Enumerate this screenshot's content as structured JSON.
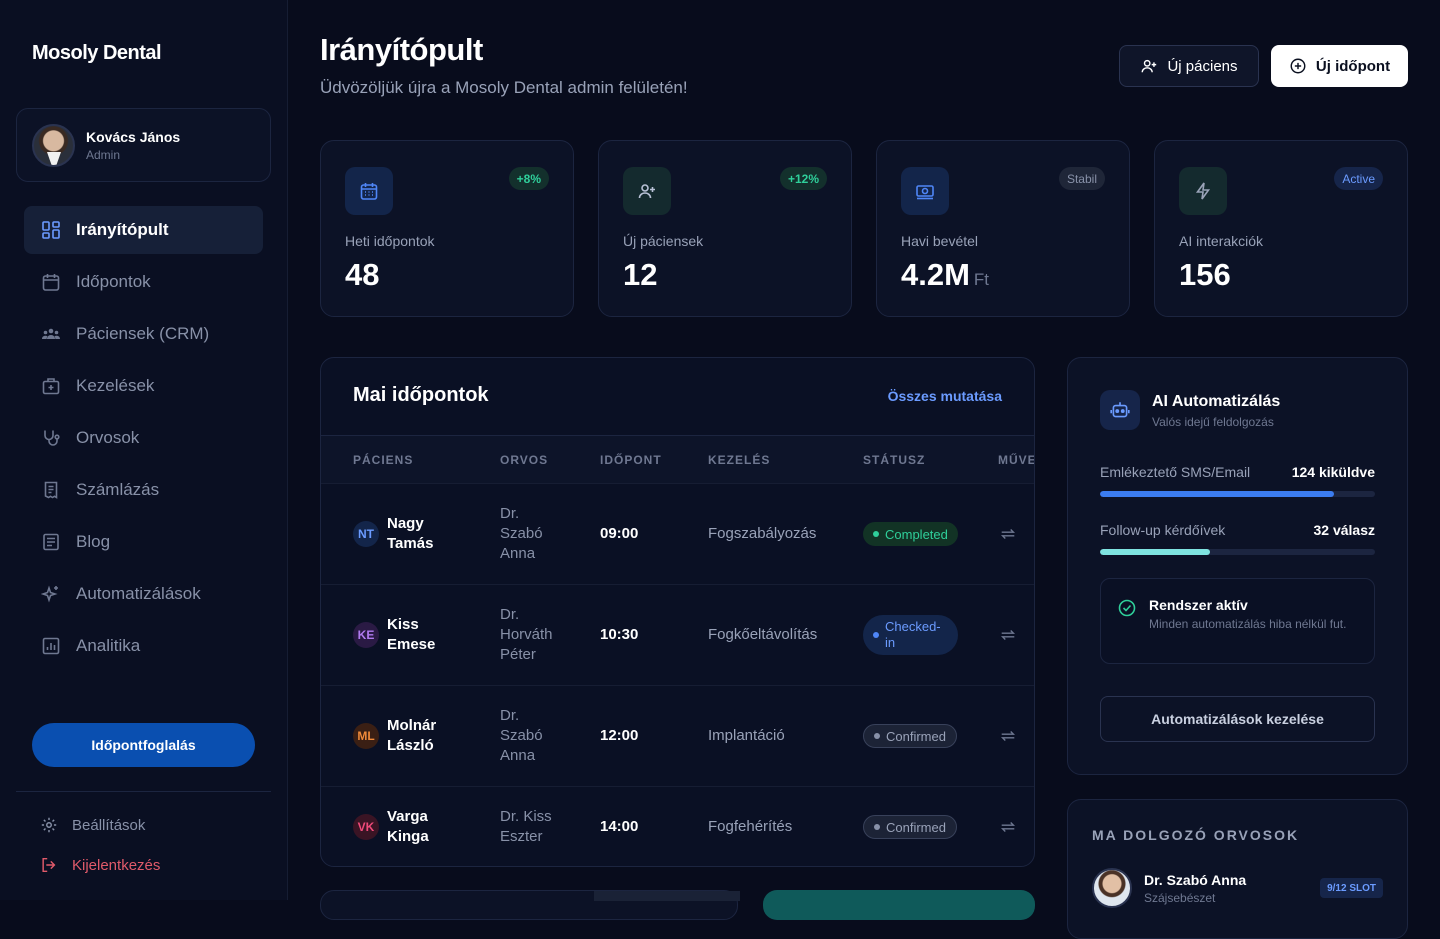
{
  "brand": "Mosoly Dental",
  "user": {
    "name": "Kovács János",
    "role": "Admin"
  },
  "nav": [
    {
      "label": "Irányítópult",
      "icon": "grid-icon",
      "active": true
    },
    {
      "label": "Időpontok",
      "icon": "calendar-icon"
    },
    {
      "label": "Páciensek (CRM)",
      "icon": "users-icon"
    },
    {
      "label": "Kezelések",
      "icon": "medical-bag-icon"
    },
    {
      "label": "Orvosok",
      "icon": "stethoscope-icon"
    },
    {
      "label": "Számlázás",
      "icon": "receipt-icon"
    },
    {
      "label": "Blog",
      "icon": "article-icon"
    },
    {
      "label": "Automatizálások",
      "icon": "sparkles-icon"
    },
    {
      "label": "Analitika",
      "icon": "chart-icon"
    }
  ],
  "booking_button": "Időpontfoglalás",
  "settings": "Beállítások",
  "logout": "Kijelentkezés",
  "header": {
    "title": "Irányítópult",
    "subtitle": "Üdvözöljük újra a Mosoly Dental admin felületén!",
    "new_patient": "Új páciens",
    "new_appointment": "Új időpont"
  },
  "stats": [
    {
      "label": "Heti időpontok",
      "value": "48",
      "unit": "",
      "badge": "+8%",
      "badge_color": "#2fcf9a",
      "icon": "calendar-icon",
      "icon_color": "#4f86f7"
    },
    {
      "label": "Új páciensek",
      "value": "12",
      "unit": "",
      "badge": "+12%",
      "badge_color": "#2fcf9a",
      "icon": "user-plus-icon",
      "icon_color": "#b8c1d6"
    },
    {
      "label": "Havi bevétel",
      "value": "4.2M",
      "unit": "Ft",
      "badge": "Stabil",
      "badge_color": "#8891a8",
      "icon": "money-icon",
      "icon_color": "#4f86f7"
    },
    {
      "label": "AI interakciók",
      "value": "156",
      "unit": "",
      "badge": "Active",
      "badge_color": "#6b9bff",
      "icon": "bolt-icon",
      "icon_color": "#9aa3b8"
    }
  ],
  "appointments": {
    "title": "Mai időpontok",
    "show_all": "Összes mutatása",
    "columns": [
      "PÁCIENS",
      "ORVOS",
      "IDŐPONT",
      "KEZELÉS",
      "STÁTUSZ",
      "MŰVE"
    ],
    "rows": [
      {
        "initials": "NT",
        "patient": "Nagy Tamás",
        "doctor": "Dr. Szabó Anna",
        "time": "09:00",
        "treatment": "Fogszabályozás",
        "status": "Completed",
        "status_kind": "completed"
      },
      {
        "initials": "KE",
        "patient": "Kiss Emese",
        "doctor": "Dr. Horváth Péter",
        "time": "10:30",
        "treatment": "Fogkőeltávolítás",
        "status": "Checked-in",
        "status_kind": "checked"
      },
      {
        "initials": "ML",
        "patient": "Molnár László",
        "doctor": "Dr. Szabó Anna",
        "time": "12:00",
        "treatment": "Implantáció",
        "status": "Confirmed",
        "status_kind": "confirmed"
      },
      {
        "initials": "VK",
        "patient": "Varga Kinga",
        "doctor": "Dr. Kiss Eszter",
        "time": "14:00",
        "treatment": "Fogfehérítés",
        "status": "Confirmed",
        "status_kind": "confirmed"
      }
    ]
  },
  "ai": {
    "title": "AI Automatizálás",
    "subtitle": "Valós idejű feldolgozás",
    "progress": [
      {
        "label": "Emlékeztető SMS/Email",
        "value": "124 kiküldve",
        "fraction": 0.85,
        "color": "#3b7cf0"
      },
      {
        "label": "Follow-up kérdőívek",
        "value": "32 válasz",
        "fraction": 0.4,
        "color": "#7fe3e0"
      }
    ],
    "system_title": "Rendszer aktív",
    "system_text": "Minden automatizálás hiba nélkül fut.",
    "manage_button": "Automatizálások kezelése"
  },
  "doctors": {
    "title": "MA DOLGOZÓ ORVOSOK",
    "items": [
      {
        "name": "Dr. Szabó Anna",
        "specialty": "Szájsebészet",
        "slot": "9/12 SLOT"
      }
    ]
  }
}
